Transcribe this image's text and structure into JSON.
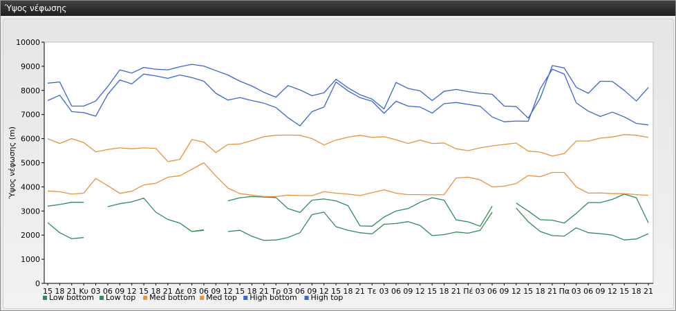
{
  "window": {
    "title": "Ύψος νέφωσης"
  },
  "chart_data": {
    "type": "line",
    "ylabel": "Ύψος νέφωσης (m)",
    "ylim": [
      0,
      10000
    ],
    "yticks": [
      0,
      1000,
      2000,
      3000,
      4000,
      5000,
      6000,
      7000,
      8000,
      9000,
      10000
    ],
    "xtick_labels": [
      "15",
      "18",
      "21",
      "Κυ",
      "03",
      "06",
      "09",
      "12",
      "15",
      "18",
      "21",
      "Δε",
      "03",
      "06",
      "09",
      "12",
      "15",
      "18",
      "21",
      "Τρ",
      "03",
      "06",
      "09",
      "12",
      "15",
      "18",
      "21",
      "Τε",
      "03",
      "06",
      "09",
      "12",
      "15",
      "18",
      "21",
      "Πέ",
      "03",
      "06",
      "09",
      "12",
      "15",
      "18",
      "21",
      "Πα",
      "03",
      "06",
      "09",
      "12",
      "15",
      "18",
      "21"
    ],
    "grid": false,
    "legend_position": "bottom-left",
    "series": [
      {
        "name": "Low bottom",
        "color": "#2e8b57",
        "values": [
          2520,
          2100,
          1850,
          1900,
          null,
          null,
          null,
          null,
          null,
          null,
          null,
          null,
          2150,
          2200,
          null,
          2150,
          2200,
          1950,
          1780,
          1800,
          1900,
          2100,
          2850,
          2950,
          2350,
          2200,
          2100,
          2050,
          2450,
          2480,
          2560,
          2400,
          1980,
          2020,
          2130,
          2080,
          2200,
          2950,
          null,
          3120,
          2560,
          2150,
          1980,
          1960,
          2300,
          2100,
          2060,
          2000,
          1800,
          1840,
          2060
        ]
      },
      {
        "name": "Low top",
        "color": "#2e8b57",
        "values": [
          3200,
          3270,
          3360,
          3360,
          null,
          3180,
          3300,
          3380,
          3530,
          2950,
          2650,
          2500,
          2150,
          2220,
          null,
          3420,
          3550,
          3600,
          3580,
          3560,
          3100,
          2940,
          3450,
          3500,
          3420,
          3220,
          2380,
          2370,
          2750,
          3000,
          3100,
          3360,
          3550,
          3450,
          2630,
          2550,
          2370,
          3200,
          null,
          3330,
          3000,
          2640,
          2620,
          2500,
          2900,
          3350,
          3350,
          3480,
          3700,
          3550,
          2510
        ]
      },
      {
        "name": "Med bottom",
        "color": "#e8923a",
        "values": [
          3830,
          3800,
          3700,
          3740,
          4350,
          4050,
          3730,
          3820,
          4080,
          4150,
          4400,
          4460,
          4730,
          5000,
          4450,
          3950,
          3720,
          3660,
          3600,
          3600,
          3660,
          3640,
          3640,
          3800,
          3740,
          3700,
          3640,
          3760,
          3880,
          3740,
          3680,
          3680,
          3670,
          3680,
          4370,
          4400,
          4290,
          4000,
          4030,
          4140,
          4470,
          4420,
          4600,
          4600,
          4000,
          3740,
          3750,
          3720,
          3720,
          3680,
          3650
        ]
      },
      {
        "name": "Med top",
        "color": "#e8923a",
        "values": [
          6000,
          5800,
          6000,
          5840,
          5450,
          5550,
          5620,
          5580,
          5620,
          5600,
          5050,
          5140,
          5960,
          5860,
          5420,
          5760,
          5780,
          5920,
          6080,
          6140,
          6150,
          6140,
          6000,
          5740,
          5940,
          6060,
          6140,
          6050,
          6080,
          5950,
          5800,
          5940,
          5800,
          5820,
          5580,
          5500,
          5620,
          5700,
          5760,
          5820,
          5480,
          5440,
          5280,
          5380,
          5900,
          5900,
          6020,
          6070,
          6170,
          6140,
          6050
        ]
      },
      {
        "name": "High bottom",
        "color": "#3a64d6",
        "values": [
          7580,
          7800,
          7120,
          7080,
          6930,
          7840,
          8430,
          8270,
          8680,
          8600,
          8500,
          8640,
          8530,
          8380,
          7880,
          7600,
          7700,
          7580,
          7470,
          7290,
          6870,
          6530,
          7120,
          7310,
          8350,
          7980,
          7700,
          7550,
          7050,
          7550,
          7350,
          7310,
          7060,
          7450,
          7500,
          7420,
          7340,
          6900,
          6700,
          6730,
          6720,
          8070,
          8880,
          8680,
          7480,
          7140,
          6920,
          7100,
          6900,
          6630,
          6570
        ]
      },
      {
        "name": "High top",
        "color": "#3a64d6",
        "values": [
          8300,
          8350,
          7350,
          7350,
          7560,
          8160,
          8850,
          8720,
          8950,
          8880,
          8850,
          8980,
          9080,
          9010,
          8820,
          8640,
          8380,
          8180,
          7920,
          7720,
          8200,
          8020,
          7780,
          7900,
          8460,
          8110,
          7820,
          7640,
          7230,
          8330,
          8080,
          7980,
          7580,
          7960,
          8040,
          7950,
          7880,
          7840,
          7350,
          7330,
          6850,
          7680,
          9030,
          8930,
          8130,
          7880,
          8380,
          8370,
          8000,
          7560,
          8120
        ]
      }
    ]
  }
}
